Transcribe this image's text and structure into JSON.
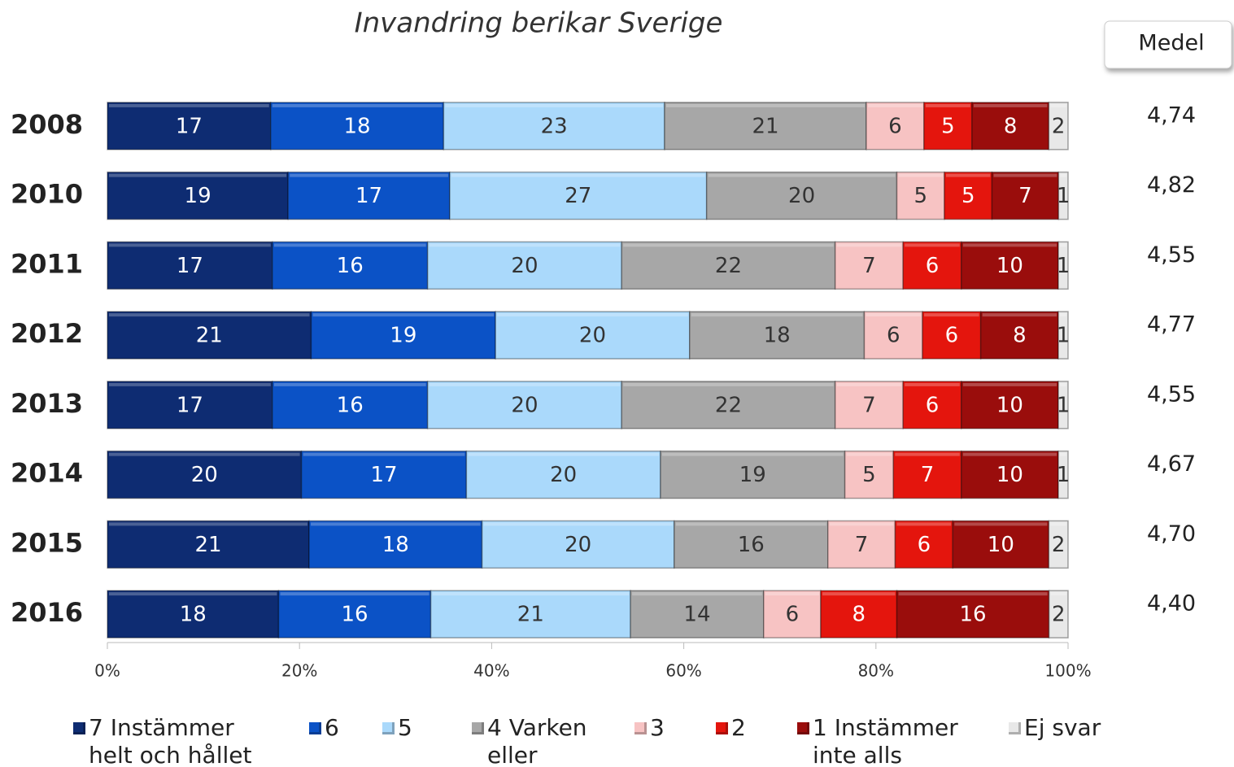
{
  "chart_data": {
    "type": "bar",
    "orientation": "horizontal",
    "stack": "percent",
    "title": "Invandring berikar Sverige",
    "categories": [
      "2008",
      "2010",
      "2011",
      "2012",
      "2013",
      "2014",
      "2015",
      "2016"
    ],
    "series": [
      {
        "name": "7 Instämmer helt och hållet",
        "color": "#0e2c72",
        "values": [
          17,
          19,
          17,
          21,
          17,
          20,
          21,
          18
        ]
      },
      {
        "name": "6",
        "color": "#0b52c6",
        "values": [
          18,
          17,
          16,
          19,
          16,
          17,
          18,
          16
        ]
      },
      {
        "name": "5",
        "color": "#aad9fb",
        "values": [
          23,
          27,
          20,
          20,
          20,
          20,
          20,
          21
        ]
      },
      {
        "name": "4 Varken eller",
        "color": "#a7a7a7",
        "values": [
          21,
          20,
          22,
          18,
          22,
          19,
          16,
          14
        ]
      },
      {
        "name": "3",
        "color": "#f7c3c3",
        "values": [
          6,
          5,
          7,
          6,
          7,
          5,
          7,
          6
        ]
      },
      {
        "name": "2",
        "color": "#e4150d",
        "values": [
          5,
          5,
          6,
          6,
          6,
          7,
          6,
          8
        ]
      },
      {
        "name": "1 Instämmer inte alls",
        "color": "#9a0d0c",
        "values": [
          8,
          7,
          10,
          8,
          10,
          10,
          10,
          16
        ]
      },
      {
        "name": "Ej svar",
        "color": "#e8e8e8",
        "values": [
          2,
          1,
          1,
          1,
          1,
          1,
          2,
          2
        ]
      }
    ],
    "xlim": [
      0,
      100
    ],
    "xticks": [
      {
        "value": 0,
        "label": "0%"
      },
      {
        "value": 20,
        "label": "20%"
      },
      {
        "value": 40,
        "label": "40%"
      },
      {
        "value": 60,
        "label": "60%"
      },
      {
        "value": 80,
        "label": "80%"
      },
      {
        "value": 100,
        "label": "100%"
      }
    ],
    "mean_header": "Medel",
    "mean_values": [
      4.74,
      4.82,
      4.55,
      4.77,
      4.55,
      4.67,
      4.7,
      4.4
    ],
    "mean_labels": [
      "4,74",
      "4,82",
      "4,55",
      "4,77",
      "4,55",
      "4,67",
      "4,70",
      "4,40"
    ],
    "legend": "bottom"
  }
}
